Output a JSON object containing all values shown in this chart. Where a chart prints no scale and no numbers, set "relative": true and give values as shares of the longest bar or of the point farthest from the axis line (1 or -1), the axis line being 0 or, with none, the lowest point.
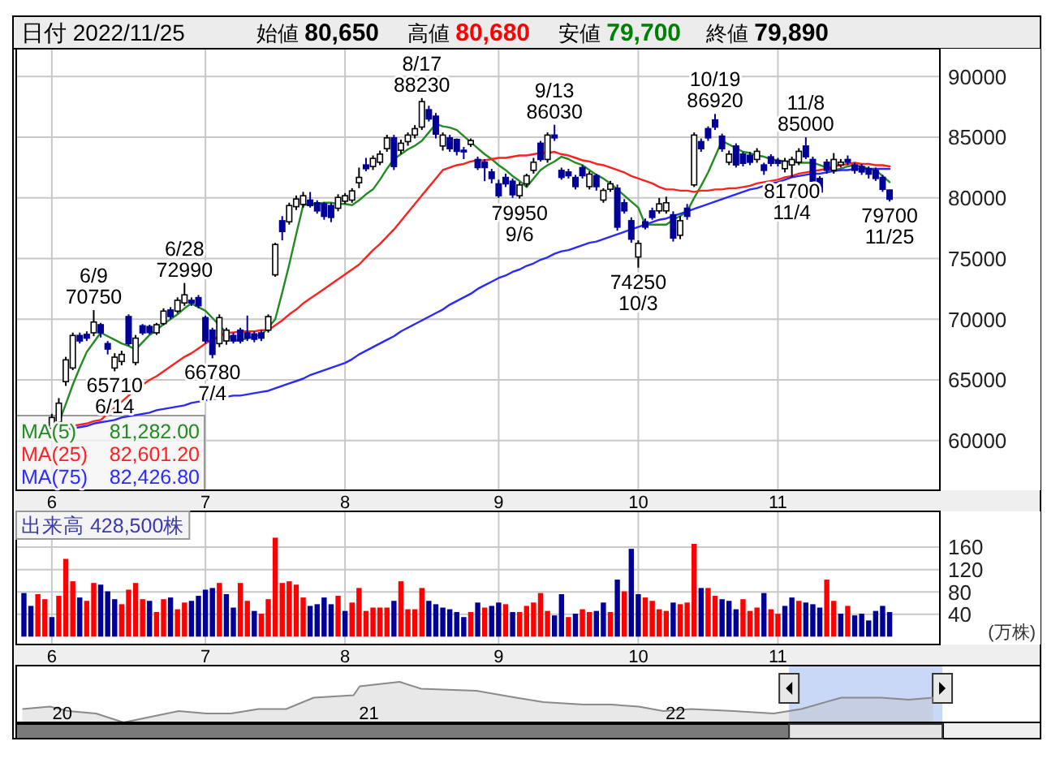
{
  "chart_data": [
    {
      "type": "other",
      "title": "日付 2022/11/25",
      "annotations": [
        "始値 80,650",
        "高値 80,680",
        "安値 79,700",
        "終値 79,890"
      ],
      "colors": [
        "#000000",
        "#ff0000",
        "#008000",
        "#000000"
      ]
    },
    {
      "type": "candlestick",
      "categories": [
        null,
        null,
        null,
        null,
        "6",
        null,
        null,
        null,
        null,
        null,
        null,
        null,
        null,
        null,
        null,
        null,
        null,
        null,
        null,
        null,
        null,
        null,
        null,
        null,
        null,
        null,
        "7",
        null,
        null,
        null,
        null,
        null,
        null,
        null,
        null,
        null,
        null,
        null,
        null,
        null,
        null,
        null,
        null,
        null,
        null,
        null,
        "8",
        null,
        null,
        null,
        null,
        null,
        null,
        null,
        null,
        null,
        null,
        null,
        null,
        null,
        null,
        null,
        null,
        null,
        null,
        null,
        null,
        null,
        "9",
        null,
        null,
        null,
        null,
        null,
        null,
        null,
        null,
        null,
        null,
        null,
        null,
        null,
        null,
        null,
        null,
        null,
        null,
        null,
        "10",
        null,
        null,
        null,
        null,
        null,
        null,
        null,
        null,
        null,
        null,
        null,
        null,
        null,
        null,
        null,
        null,
        null,
        null,
        null,
        "11",
        null,
        null,
        null,
        null,
        null,
        null,
        null,
        null,
        null,
        null,
        null,
        null,
        null,
        null,
        null,
        null
      ],
      "ohlc": [
        null,
        null,
        null,
        null,
        [
          61000,
          62200,
          60600,
          61900
        ],
        [
          61520,
          63500,
          61200,
          63080
        ],
        [
          64860,
          66900,
          64500,
          66650
        ],
        [
          65980,
          68900,
          65800,
          68660
        ],
        [
          68660,
          68900,
          68000,
          68210
        ],
        [
          68750,
          69000,
          68200,
          68440
        ],
        [
          68880,
          70750,
          68600,
          69770
        ],
        [
          69550,
          69700,
          68500,
          68880
        ],
        [
          67990,
          68200,
          67100,
          67540
        ],
        [
          65980,
          67200,
          65710,
          66870
        ],
        [
          66520,
          67400,
          66200,
          67100
        ],
        [
          70220,
          70400,
          67800,
          67990
        ],
        [
          66430,
          68700,
          66200,
          68440
        ],
        [
          69460,
          69600,
          68700,
          68880
        ],
        [
          69400,
          69550,
          68750,
          68900
        ],
        [
          68880,
          69700,
          68700,
          69550
        ],
        [
          69640,
          70900,
          69500,
          70670
        ],
        [
          70760,
          71000,
          70000,
          70220
        ],
        [
          70670,
          71800,
          70500,
          71560
        ],
        [
          71340,
          72990,
          71100,
          72010
        ],
        [
          71560,
          71800,
          71100,
          71340
        ],
        [
          71780,
          72000,
          70900,
          71110
        ],
        [
          70130,
          70300,
          68000,
          68210
        ],
        [
          69100,
          69300,
          66780,
          67100
        ],
        [
          67990,
          70400,
          67700,
          70130
        ],
        [
          68210,
          69300,
          67900,
          69100
        ],
        [
          68660,
          68900,
          68000,
          68210
        ],
        [
          69100,
          69300,
          68000,
          68210
        ],
        [
          68880,
          70300,
          68200,
          68440
        ],
        [
          68790,
          69000,
          68100,
          68350
        ],
        [
          68880,
          69100,
          68200,
          68440
        ],
        [
          69100,
          70400,
          68900,
          70220
        ],
        [
          73660,
          76300,
          73500,
          76160
        ],
        [
          78120,
          78500,
          76500,
          77230
        ],
        [
          78030,
          79600,
          77800,
          79370
        ],
        [
          79280,
          80200,
          79000,
          79910
        ],
        [
          79460,
          80500,
          79200,
          80180
        ],
        [
          79820,
          80490,
          79200,
          79370
        ],
        [
          79600,
          79800,
          78700,
          78930
        ],
        [
          79510,
          79650,
          78200,
          78480
        ],
        [
          79370,
          79600,
          78000,
          78390
        ],
        [
          79150,
          80300,
          78900,
          80040
        ],
        [
          79730,
          80400,
          79500,
          80180
        ],
        [
          79820,
          80800,
          79600,
          80580
        ],
        [
          81250,
          82500,
          80800,
          81690
        ],
        [
          82720,
          83300,
          82200,
          82410
        ],
        [
          82590,
          83500,
          82300,
          83260
        ],
        [
          82940,
          83900,
          82700,
          83610
        ],
        [
          84060,
          85200,
          83800,
          84950
        ],
        [
          84950,
          85200,
          82300,
          82590
        ],
        [
          83930,
          84800,
          83600,
          84510
        ],
        [
          84640,
          85400,
          84300,
          85180
        ],
        [
          85180,
          86000,
          84900,
          85710
        ],
        [
          85840,
          88230,
          85600,
          87940
        ],
        [
          87270,
          87600,
          86300,
          86510
        ],
        [
          86740,
          87000,
          84900,
          85260
        ],
        [
          84280,
          85400,
          83900,
          85180
        ],
        [
          84950,
          85200,
          83800,
          84060
        ],
        [
          84820,
          84900,
          83500,
          83840
        ],
        [
          83930,
          84200,
          83200,
          83900
        ],
        [
          84420,
          84900,
          84200,
          84730
        ],
        [
          83170,
          83400,
          82300,
          82500
        ],
        [
          82940,
          83200,
          81380,
          82500
        ],
        [
          82140,
          82400,
          81200,
          81600
        ],
        [
          81160,
          81500,
          80000,
          80180
        ],
        [
          81690,
          82000,
          80900,
          81160
        ],
        [
          81380,
          81600,
          80000,
          80260
        ],
        [
          80180,
          81300,
          79950,
          81070
        ],
        [
          81160,
          82000,
          80900,
          81830
        ],
        [
          82270,
          83300,
          82000,
          82940
        ],
        [
          84510,
          84700,
          83000,
          83170
        ],
        [
          83170,
          85400,
          82900,
          85180
        ],
        [
          85180,
          86030,
          84700,
          84950
        ],
        [
          82270,
          82500,
          81500,
          81690
        ],
        [
          82140,
          82400,
          81600,
          81830
        ],
        [
          81690,
          81900,
          80700,
          80930
        ],
        [
          82500,
          82700,
          81600,
          81830
        ],
        [
          80930,
          82200,
          80700,
          81960
        ],
        [
          81830,
          82000,
          80600,
          80930
        ],
        [
          79820,
          80800,
          79600,
          80620
        ],
        [
          80710,
          81400,
          80500,
          81160
        ],
        [
          80800,
          81100,
          77300,
          77590
        ],
        [
          79600,
          79900,
          78700,
          78930
        ],
        [
          78120,
          78400,
          76300,
          76600
        ],
        [
          75130,
          76500,
          74250,
          76250
        ],
        [
          78030,
          78300,
          77400,
          77590
        ],
        [
          78930,
          79200,
          78200,
          78390
        ],
        [
          78930,
          80000,
          78700,
          79510
        ],
        [
          78930,
          80100,
          78700,
          79600
        ],
        [
          78610,
          78900,
          76400,
          76690
        ],
        [
          76920,
          78500,
          76600,
          78120
        ],
        [
          79150,
          79500,
          78200,
          78480
        ],
        [
          81070,
          85400,
          80900,
          85180
        ],
        [
          84640,
          84900,
          83800,
          84060
        ],
        [
          85710,
          85900,
          84700,
          84950
        ],
        [
          86430,
          86920,
          85600,
          85840
        ],
        [
          85090,
          85300,
          83800,
          84060
        ],
        [
          82940,
          83900,
          82700,
          83610
        ],
        [
          84280,
          84500,
          82500,
          82720
        ],
        [
          83610,
          83800,
          82600,
          82850
        ],
        [
          83520,
          83800,
          82700,
          82940
        ],
        [
          83170,
          84100,
          82900,
          83840
        ],
        [
          82720,
          82900,
          81900,
          82270
        ],
        [
          83390,
          83600,
          82600,
          82850
        ],
        [
          83080,
          83300,
          82600,
          82850
        ],
        [
          82410,
          83300,
          82100,
          83030
        ],
        [
          82720,
          83400,
          81700,
          83170
        ],
        [
          82940,
          84100,
          82700,
          83840
        ],
        [
          84280,
          85000,
          83200,
          83390
        ],
        [
          83170,
          83400,
          81200,
          81380
        ],
        [
          81600,
          81800,
          80040,
          80490
        ],
        [
          82940,
          83200,
          82000,
          82270
        ],
        [
          82270,
          83700,
          82000,
          83170
        ],
        [
          82720,
          83200,
          82500,
          82940
        ],
        [
          83170,
          83500,
          82700,
          82940
        ],
        [
          82720,
          82900,
          82000,
          82270
        ],
        [
          82590,
          82800,
          81900,
          82140
        ],
        [
          82410,
          82600,
          81600,
          81960
        ],
        [
          82270,
          82500,
          81400,
          81600
        ],
        [
          81690,
          81900,
          80500,
          80710
        ],
        [
          80650,
          80680,
          79700,
          79890
        ]
      ],
      "ylim": [
        55900,
        92300
      ],
      "yticks": [
        60000,
        65000,
        70000,
        75000,
        80000,
        85000,
        90000
      ],
      "grid": true,
      "legend": "bottom left",
      "series": [
        {
          "name": "MA(5) 81,282.00",
          "type": "line",
          "color": "#228b22",
          "values": [
            null,
            null,
            null,
            null,
            60200,
            61500,
            63000,
            64600,
            66000,
            67300,
            68100,
            68900,
            68600,
            68300,
            68000,
            67800,
            67500,
            68100,
            68700,
            69100,
            69600,
            70000,
            70400,
            70900,
            71300,
            71000,
            70700,
            70100,
            69500,
            68900,
            68200,
            68300,
            68400,
            68600,
            68700,
            69300,
            70000,
            72200,
            74500,
            77000,
            79400,
            79500,
            79500,
            79600,
            79600,
            79500,
            79500,
            79400,
            79800,
            80300,
            80700,
            81500,
            82400,
            83200,
            83600,
            84000,
            84300,
            84700,
            85400,
            86100,
            85900,
            85800,
            85600,
            85100,
            84600,
            84100,
            83600,
            83200,
            82700,
            82300,
            81800,
            81400,
            80900,
            81600,
            82300,
            82700,
            83000,
            83400,
            83200,
            82900,
            82700,
            82300,
            81900,
            81600,
            81200,
            80700,
            80200,
            79700,
            79200,
            77800,
            77800,
            77800,
            77800,
            78200,
            78500,
            78900,
            80000,
            81000,
            82100,
            83400,
            84700,
            84400,
            84100,
            83800,
            83700,
            83500,
            83400,
            83200,
            83100,
            83000,
            83000,
            82900,
            82900,
            82900,
            82700,
            82500,
            82300,
            82400,
            82600,
            82700,
            82600,
            82400,
            82300,
            81800,
            81300
          ]
        },
        {
          "name": "MA(25) 82,601.20",
          "type": "line",
          "color": "#ff2020",
          "values": [
            null,
            null,
            null,
            null,
            null,
            null,
            null,
            61200,
            61300,
            61400,
            61600,
            61700,
            62200,
            62700,
            63200,
            63700,
            64200,
            64600,
            65000,
            65300,
            65700,
            66100,
            66500,
            66900,
            67200,
            67600,
            68000,
            68300,
            68600,
            68900,
            68900,
            69000,
            69000,
            69000,
            69100,
            69100,
            69500,
            69900,
            70400,
            70800,
            71300,
            71700,
            72100,
            72500,
            72900,
            73300,
            73700,
            74100,
            74500,
            75100,
            75700,
            76200,
            76800,
            77400,
            78100,
            78800,
            79500,
            80200,
            80900,
            81600,
            82300,
            82500,
            82700,
            82800,
            83000,
            83100,
            83100,
            83200,
            83300,
            83300,
            83400,
            83500,
            83500,
            83600,
            83700,
            83700,
            83800,
            83600,
            83500,
            83300,
            83100,
            83000,
            82800,
            82700,
            82500,
            82300,
            82100,
            81800,
            81600,
            81400,
            81200,
            80900,
            80700,
            80700,
            80600,
            80600,
            80500,
            80600,
            80600,
            80700,
            80700,
            80800,
            80800,
            80900,
            81000,
            81200,
            81300,
            81400,
            81500,
            81700,
            81800,
            82000,
            82100,
            82200,
            82300,
            82400,
            82600,
            82700,
            82800,
            82900,
            82800,
            82800,
            82700,
            82700,
            82600
          ]
        },
        {
          "name": "MA(75) 82,426.80",
          "type": "line",
          "color": "#2a2aff",
          "values": [
            null,
            null,
            null,
            null,
            null,
            null,
            60900,
            61000,
            61100,
            61200,
            61400,
            61500,
            61600,
            61700,
            61900,
            62000,
            62100,
            62200,
            62300,
            62500,
            62600,
            62700,
            62800,
            62900,
            63100,
            63200,
            63300,
            63400,
            63500,
            63600,
            63700,
            63700,
            63800,
            63900,
            64000,
            64100,
            64300,
            64500,
            64700,
            64900,
            65100,
            65400,
            65600,
            65800,
            66000,
            66200,
            66400,
            66700,
            67100,
            67400,
            67700,
            68000,
            68300,
            68600,
            69000,
            69300,
            69600,
            69900,
            70200,
            70500,
            70800,
            71200,
            71500,
            71800,
            72100,
            72500,
            72800,
            73100,
            73400,
            73600,
            73900,
            74100,
            74400,
            74600,
            74900,
            75100,
            75400,
            75600,
            75700,
            75900,
            76100,
            76300,
            76400,
            76600,
            76800,
            77000,
            77200,
            77400,
            77600,
            77800,
            78000,
            78200,
            78300,
            78500,
            78700,
            78900,
            79100,
            79300,
            79500,
            79700,
            79900,
            80100,
            80300,
            80500,
            80700,
            80800,
            81000,
            81200,
            81300,
            81500,
            81700,
            81800,
            81900,
            82000,
            82000,
            82100,
            82200,
            82300,
            82300,
            82400,
            82400,
            82400,
            82400,
            82400,
            82400
          ]
        }
      ],
      "annotations": [
        {
          "text": "6/9\n70750",
          "y": 70750
        },
        {
          "text": "65710\n6/14",
          "y": 65710
        },
        {
          "text": "6/28\n72990",
          "y": 72990
        },
        {
          "text": "66780\n7/4",
          "y": 66780
        },
        {
          "text": "8/17\n88230",
          "y": 88230
        },
        {
          "text": "79950\n9/6",
          "y": 79950
        },
        {
          "text": "9/13\n86030",
          "y": 86030
        },
        {
          "text": "74250\n10/3",
          "y": 74250
        },
        {
          "text": "10/19\n86920",
          "y": 86920
        },
        {
          "text": "11/8\n85000",
          "y": 85000
        },
        {
          "text": "81700\n11/4",
          "y": 81700
        },
        {
          "text": "79700\n11/25",
          "y": 79700
        }
      ]
    },
    {
      "type": "bar",
      "title": "出来高 428,500株",
      "ylabel": "(万株)",
      "categories": [
        null,
        null,
        null,
        null,
        "6",
        null,
        null,
        null,
        null,
        null,
        null,
        null,
        null,
        null,
        null,
        null,
        null,
        null,
        null,
        null,
        null,
        null,
        null,
        null,
        null,
        null,
        "7",
        null,
        null,
        null,
        null,
        null,
        null,
        null,
        null,
        null,
        null,
        null,
        null,
        null,
        null,
        null,
        null,
        null,
        null,
        null,
        "8",
        null,
        null,
        null,
        null,
        null,
        null,
        null,
        null,
        null,
        null,
        null,
        null,
        null,
        null,
        null,
        null,
        null,
        null,
        null,
        null,
        null,
        "9",
        null,
        null,
        null,
        null,
        null,
        null,
        null,
        null,
        null,
        null,
        null,
        null,
        null,
        null,
        null,
        null,
        null,
        null,
        null,
        "10",
        null,
        null,
        null,
        null,
        null,
        null,
        null,
        null,
        null,
        null,
        null,
        null,
        null,
        null,
        null,
        null,
        null,
        null,
        null,
        "11",
        null,
        null,
        null,
        null,
        null,
        null,
        null,
        null,
        null,
        null,
        null,
        null,
        null,
        null,
        null,
        null
      ],
      "values": [
        78,
        55,
        76,
        67,
        35,
        73,
        139,
        99,
        70,
        64,
        96,
        93,
        81,
        67,
        58,
        84,
        96,
        67,
        64,
        44,
        67,
        70,
        49,
        61,
        64,
        73,
        84,
        87,
        96,
        76,
        52,
        96,
        64,
        46,
        41,
        67,
        177,
        96,
        99,
        93,
        70,
        55,
        58,
        70,
        58,
        73,
        46,
        61,
        87,
        46,
        52,
        52,
        52,
        64,
        99,
        49,
        49,
        87,
        64,
        58,
        52,
        49,
        44,
        35,
        44,
        61,
        52,
        55,
        61,
        58,
        44,
        44,
        55,
        61,
        78,
        46,
        38,
        76,
        35,
        41,
        49,
        44,
        46,
        61,
        44,
        102,
        81,
        157,
        76,
        70,
        64,
        49,
        46,
        61,
        58,
        61,
        166,
        87,
        87,
        73,
        67,
        64,
        49,
        67,
        46,
        52,
        78,
        49,
        41,
        55,
        70,
        64,
        61,
        58,
        52,
        102,
        64,
        41,
        55,
        38,
        41,
        29,
        46,
        55,
        44
      ],
      "colors": [
        "#000099",
        "#000099",
        "#ff0000",
        "#ff0000",
        "#000099",
        "#ff0000",
        "#ff0000",
        "#ff0000",
        "#000099",
        "#ff0000",
        "#ff0000",
        "#000099",
        "#000099",
        "#000099",
        "#ff0000",
        "#ff0000",
        "#ff0000",
        "#ff0000",
        "#000099",
        "#ff0000",
        "#ff0000",
        "#000099",
        "#ff0000",
        "#ff0000",
        "#000099",
        "#000099",
        "#000099",
        "#000099",
        "#ff0000",
        "#000099",
        "#000099",
        "#ff0000",
        "#ff0000",
        "#000099",
        "#ff0000",
        "#ff0000",
        "#ff0000",
        "#ff0000",
        "#ff0000",
        "#ff0000",
        "#ff0000",
        "#000099",
        "#000099",
        "#000099",
        "#000099",
        "#ff0000",
        "#000099",
        "#ff0000",
        "#ff0000",
        "#ff0000",
        "#ff0000",
        "#ff0000",
        "#ff0000",
        "#000099",
        "#ff0000",
        "#ff0000",
        "#ff0000",
        "#ff0000",
        "#000099",
        "#000099",
        "#000099",
        "#000099",
        "#000099",
        "#000099",
        "#ff0000",
        "#000099",
        "#ff0000",
        "#000099",
        "#000099",
        "#ff0000",
        "#000099",
        "#ff0000",
        "#ff0000",
        "#ff0000",
        "#ff0000",
        "#ff0000",
        "#000099",
        "#000099",
        "#ff0000",
        "#000099",
        "#ff0000",
        "#ff0000",
        "#000099",
        "#000099",
        "#ff0000",
        "#000099",
        "#ff0000",
        "#000099",
        "#000099",
        "#ff0000",
        "#ff0000",
        "#ff0000",
        "#ff0000",
        "#000099",
        "#ff0000",
        "#ff0000",
        "#ff0000",
        "#000099",
        "#ff0000",
        "#ff0000",
        "#000099",
        "#000099",
        "#000099",
        "#ff0000",
        "#ff0000",
        "#ff0000",
        "#000099",
        "#ff0000",
        "#ff0000",
        "#000099",
        "#000099",
        "#ff0000",
        "#000099",
        "#000099",
        "#000099",
        "#ff0000",
        "#ff0000",
        "#000099",
        "#ff0000",
        "#000099",
        "#000099",
        "#000099",
        "#000099",
        "#000099",
        "#000099"
      ],
      "ylim": [
        -14,
        224
      ],
      "yticks": [
        40,
        80,
        120,
        160
      ],
      "grid": true
    },
    {
      "type": "area",
      "relative": true,
      "color": "#8a8a8a",
      "x": [
        2019.87,
        2019.96,
        2020.02,
        2020.11,
        2020.2,
        2020.29,
        2020.38,
        2020.47,
        2020.55,
        2020.64,
        2020.73,
        2020.82,
        2020.95,
        2020.97,
        2021.1,
        2021.17,
        2021.35,
        2021.48,
        2021.57,
        2021.7,
        2021.79,
        2021.88,
        2021.96,
        2022.05,
        2022.19,
        2022.32,
        2022.41,
        2022.54,
        2022.67,
        2022.76,
        2022.84
      ],
      "values": [
        0.33,
        0.39,
        0.28,
        0.22,
        0,
        0.14,
        0.28,
        0.22,
        0.22,
        0.33,
        0.33,
        0.61,
        0.67,
        0.89,
        1,
        0.83,
        0.78,
        0.61,
        0.5,
        0.44,
        0.44,
        0.39,
        0.28,
        0.33,
        0.28,
        0.22,
        0.33,
        0.61,
        0.61,
        0.56,
        0.61
      ],
      "xlim": [
        2019.85,
        2023.19
      ],
      "xticks": [
        {
          "value": 2020,
          "label": "20"
        },
        {
          "value": 2021,
          "label": "21"
        },
        {
          "value": 2022,
          "label": "22"
        }
      ],
      "bands": [
        {
          "axis": "x",
          "from": 2022.37,
          "to": 2022.87,
          "color": "#b4c8f5"
        }
      ]
    }
  ]
}
